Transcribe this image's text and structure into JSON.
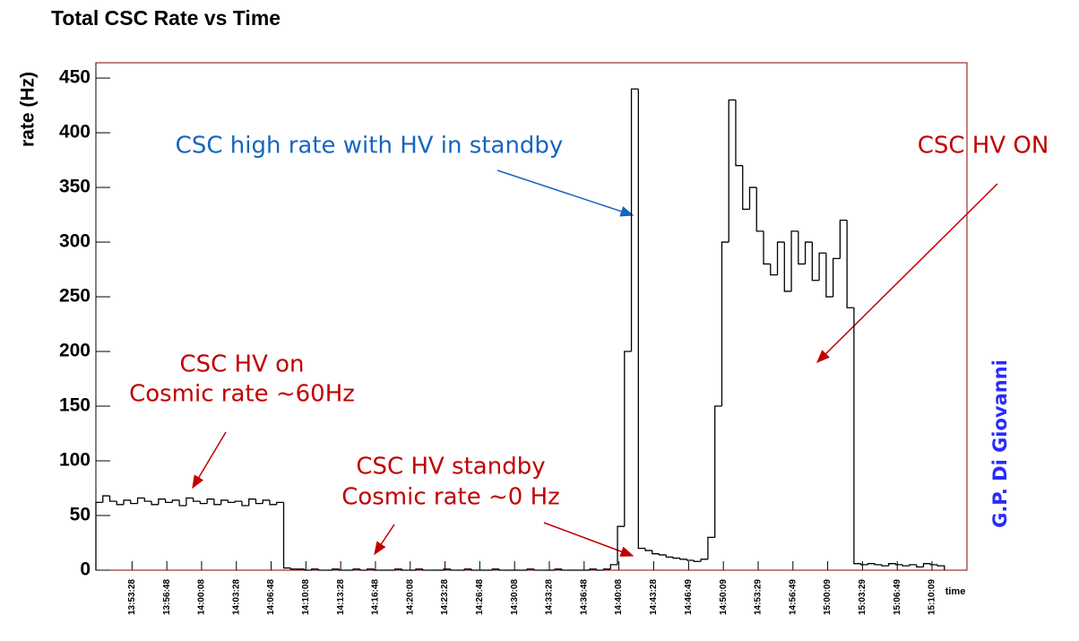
{
  "chart_data": {
    "type": "histogram",
    "title": "Total CSC Rate vs Time",
    "y_label": "rate (Hz)",
    "x_label": "time",
    "watermark": "G.P. Di Giovanni",
    "color": "#000000",
    "annotations": [
      {
        "text": "CSC high rate with HV in standby",
        "color": "#1565c0"
      },
      {
        "text": "CSC HV ON",
        "color": "#c00000"
      },
      {
        "text": "CSC HV on",
        "color": "#c00000"
      },
      {
        "text": "Cosmic rate ~60Hz",
        "color": "#c00000"
      },
      {
        "text": "CSC HV standby",
        "color": "#c00000"
      },
      {
        "text": "Cosmic rate ~0 Hz",
        "color": "#c00000"
      }
    ],
    "xlim": [
      49800,
      54810
    ],
    "ylim": [
      0,
      464
    ],
    "yticks": [
      0,
      50,
      100,
      150,
      200,
      250,
      300,
      350,
      400,
      450
    ],
    "xticks": [
      {
        "value": 50008,
        "label": "13:53:28"
      },
      {
        "value": 50208,
        "label": "13:56:48"
      },
      {
        "value": 50408,
        "label": "14:00:08"
      },
      {
        "value": 50608,
        "label": "14:03:28"
      },
      {
        "value": 50808,
        "label": "14:06:48"
      },
      {
        "value": 51008,
        "label": "14:10:08"
      },
      {
        "value": 51208,
        "label": "14:13:28"
      },
      {
        "value": 51408,
        "label": "14:16:48"
      },
      {
        "value": 51608,
        "label": "14:20:08"
      },
      {
        "value": 51808,
        "label": "14:23:28"
      },
      {
        "value": 52008,
        "label": "14:26:48"
      },
      {
        "value": 52208,
        "label": "14:30:08"
      },
      {
        "value": 52408,
        "label": "14:33:28"
      },
      {
        "value": 52608,
        "label": "14:36:48"
      },
      {
        "value": 52808,
        "label": "14:40:08"
      },
      {
        "value": 53008,
        "label": "14:43:28"
      },
      {
        "value": 53209,
        "label": "14:46:49"
      },
      {
        "value": 53409,
        "label": "14:50:09"
      },
      {
        "value": 53609,
        "label": "14:53:29"
      },
      {
        "value": 53809,
        "label": "14:56:49"
      },
      {
        "value": 54009,
        "label": "15:00:09"
      },
      {
        "value": 54209,
        "label": "15:03:29"
      },
      {
        "value": 54409,
        "label": "15:06:49"
      },
      {
        "value": 54609,
        "label": "15:10:09"
      }
    ],
    "bins": [
      49800,
      49840,
      49880,
      49920,
      49960,
      50000,
      50040,
      50080,
      50120,
      50160,
      50200,
      50240,
      50280,
      50320,
      50360,
      50400,
      50440,
      50480,
      50520,
      50560,
      50600,
      50640,
      50680,
      50720,
      50760,
      50800,
      50840,
      50880,
      50920,
      50960,
      51000,
      51040,
      51080,
      51120,
      51160,
      51200,
      51240,
      51280,
      51320,
      51360,
      51400,
      51440,
      51480,
      51520,
      51560,
      51600,
      51640,
      51680,
      51720,
      51760,
      51800,
      51840,
      51880,
      51920,
      51960,
      52000,
      52040,
      52080,
      52120,
      52160,
      52200,
      52240,
      52280,
      52320,
      52360,
      52400,
      52440,
      52480,
      52520,
      52560,
      52600,
      52640,
      52680,
      52720,
      52760,
      52800,
      52840,
      52880,
      52920,
      52960,
      53000,
      53040,
      53080,
      53120,
      53160,
      53200,
      53240,
      53280,
      53320,
      53360,
      53400,
      53440,
      53480,
      53520,
      53560,
      53600,
      53640,
      53680,
      53720,
      53760,
      53800,
      53840,
      53880,
      53920,
      53960,
      54000,
      54040,
      54080,
      54120,
      54160,
      54200,
      54240,
      54280,
      54320,
      54360,
      54400,
      54440,
      54480,
      54520,
      54560,
      54600,
      54640,
      54680
    ],
    "values": [
      62,
      68,
      63,
      60,
      64,
      61,
      66,
      63,
      60,
      65,
      62,
      64,
      59,
      66,
      63,
      61,
      65,
      60,
      64,
      62,
      63,
      59,
      65,
      61,
      64,
      60,
      62,
      2,
      1,
      1,
      0,
      1,
      0,
      0,
      1,
      0,
      0,
      1,
      0,
      1,
      0,
      0,
      0,
      1,
      0,
      0,
      1,
      0,
      0,
      0,
      1,
      0,
      0,
      1,
      0,
      0,
      0,
      1,
      0,
      0,
      0,
      0,
      1,
      0,
      0,
      0,
      1,
      0,
      0,
      0,
      0,
      1,
      0,
      1,
      5,
      40,
      200,
      440,
      20,
      18,
      15,
      14,
      12,
      11,
      10,
      9,
      8,
      10,
      30,
      150,
      300,
      430,
      370,
      330,
      350,
      310,
      280,
      270,
      300,
      255,
      310,
      280,
      300,
      265,
      290,
      250,
      285,
      320,
      240,
      6,
      5,
      6,
      5,
      4,
      6,
      5,
      4,
      5,
      3,
      6,
      5,
      4
    ]
  }
}
